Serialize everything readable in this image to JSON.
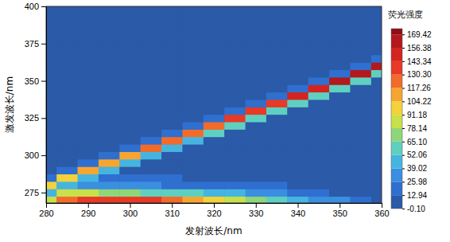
{
  "chart_data": {
    "type": "heatmap",
    "x_label": "发射波长/nm",
    "y_label": "激发波长/nm",
    "x": [
      280,
      285,
      290,
      295,
      300,
      305,
      310,
      315,
      320,
      325,
      330,
      335,
      340,
      345,
      350,
      355,
      360
    ],
    "y": [
      270,
      275,
      280,
      285,
      290,
      295,
      300,
      305,
      310,
      315,
      320,
      325,
      330,
      335,
      340,
      345,
      350,
      355,
      360,
      365,
      370,
      375,
      380,
      385,
      390,
      395,
      400
    ],
    "cells": [
      [
        85,
        120,
        135,
        140,
        140,
        138,
        130,
        115,
        100,
        85,
        70,
        58,
        48,
        38,
        28,
        15,
        5
      ],
      [
        45,
        85,
        80,
        75,
        70,
        65,
        60,
        55,
        50,
        45,
        38,
        30,
        25,
        18,
        12,
        6,
        2
      ],
      [
        95,
        46,
        30,
        28,
        27,
        26,
        25,
        24,
        22,
        20,
        17,
        14,
        12,
        9,
        6,
        3,
        1
      ],
      [
        15,
        100,
        47,
        14,
        14,
        13,
        13,
        12,
        12,
        11,
        10,
        9,
        8,
        6,
        4,
        2,
        0
      ],
      [
        3,
        15,
        105,
        48,
        10,
        10,
        10,
        9,
        9,
        8,
        8,
        7,
        6,
        5,
        3,
        1,
        0
      ],
      [
        1,
        3,
        15,
        110,
        49,
        7,
        7,
        6,
        6,
        6,
        5,
        5,
        4,
        3,
        2,
        1,
        0
      ],
      [
        0,
        1,
        3,
        15,
        115,
        50,
        3,
        3,
        3,
        3,
        3,
        2,
        2,
        2,
        1,
        0,
        0
      ],
      [
        0,
        0,
        0,
        0,
        15,
        118,
        51,
        0,
        0,
        0,
        0,
        0,
        0,
        0,
        0,
        0,
        0
      ],
      [
        0,
        0,
        0,
        0,
        0,
        15,
        122,
        52,
        0,
        0,
        0,
        0,
        0,
        0,
        0,
        0,
        0
      ],
      [
        0,
        0,
        0,
        0,
        0,
        0,
        15,
        125,
        53,
        0,
        0,
        0,
        0,
        0,
        0,
        0,
        0
      ],
      [
        0,
        0,
        0,
        0,
        0,
        0,
        0,
        15,
        130,
        54,
        0,
        0,
        0,
        0,
        0,
        0,
        0
      ],
      [
        0,
        0,
        0,
        0,
        0,
        0,
        0,
        0,
        15,
        133,
        55,
        0,
        0,
        0,
        0,
        0,
        0
      ],
      [
        0,
        0,
        0,
        0,
        0,
        0,
        0,
        0,
        0,
        15,
        138,
        56,
        0,
        0,
        0,
        0,
        0
      ],
      [
        0,
        0,
        0,
        0,
        0,
        0,
        0,
        0,
        0,
        0,
        15,
        142,
        57,
        0,
        0,
        0,
        0
      ],
      [
        0,
        0,
        0,
        0,
        0,
        0,
        0,
        0,
        0,
        0,
        0,
        15,
        148,
        58,
        0,
        0,
        0
      ],
      [
        0,
        0,
        0,
        0,
        0,
        0,
        0,
        0,
        0,
        0,
        0,
        0,
        15,
        152,
        59,
        0,
        0
      ],
      [
        0,
        0,
        0,
        0,
        0,
        0,
        0,
        0,
        0,
        0,
        0,
        0,
        0,
        15,
        158,
        60,
        0
      ],
      [
        0,
        0,
        0,
        0,
        0,
        0,
        0,
        0,
        0,
        0,
        0,
        0,
        0,
        0,
        15,
        163,
        60
      ],
      [
        0,
        0,
        0,
        0,
        0,
        0,
        0,
        0,
        0,
        0,
        0,
        0,
        0,
        0,
        0,
        15,
        168
      ],
      [
        0,
        0,
        0,
        0,
        0,
        0,
        0,
        0,
        0,
        0,
        0,
        0,
        0,
        0,
        0,
        0,
        15
      ],
      [
        0,
        0,
        0,
        0,
        0,
        0,
        0,
        0,
        0,
        0,
        0,
        0,
        0,
        0,
        0,
        0,
        0
      ],
      [
        0,
        0,
        0,
        0,
        0,
        0,
        0,
        0,
        0,
        0,
        0,
        0,
        0,
        0,
        0,
        0,
        0
      ],
      [
        0,
        0,
        0,
        0,
        0,
        0,
        0,
        0,
        0,
        0,
        0,
        0,
        0,
        0,
        0,
        0,
        0
      ],
      [
        0,
        0,
        0,
        0,
        0,
        0,
        0,
        0,
        0,
        0,
        0,
        0,
        0,
        0,
        0,
        0,
        0
      ],
      [
        0,
        0,
        0,
        0,
        0,
        0,
        0,
        0,
        0,
        0,
        0,
        0,
        0,
        0,
        0,
        0,
        0
      ],
      [
        0,
        0,
        0,
        0,
        0,
        0,
        0,
        0,
        0,
        0,
        0,
        0,
        0,
        0,
        0,
        0,
        0
      ],
      [
        0,
        0,
        0,
        0,
        0,
        0,
        0,
        0,
        0,
        0,
        0,
        0,
        0,
        0,
        0,
        0,
        0
      ]
    ],
    "xlim": [
      280,
      360
    ],
    "xticks": [
      280,
      290,
      300,
      310,
      320,
      330,
      340,
      350,
      360
    ],
    "ylim": [
      268,
      400
    ],
    "yticks": [
      275,
      300,
      325,
      350,
      375,
      400
    ],
    "colorbar": {
      "title": "荧光强度",
      "range": [
        -0.1,
        175
      ],
      "ticks": [
        {
          "value": -0.1,
          "label": "-0.10"
        },
        12.94,
        25.98,
        39.02,
        52.06,
        {
          "value": 65.1,
          "label": "65.10"
        },
        78.14,
        91.18,
        104.22,
        117.26,
        {
          "value": 130.3,
          "label": "130.30"
        },
        143.34,
        156.38,
        169.42
      ]
    }
  }
}
